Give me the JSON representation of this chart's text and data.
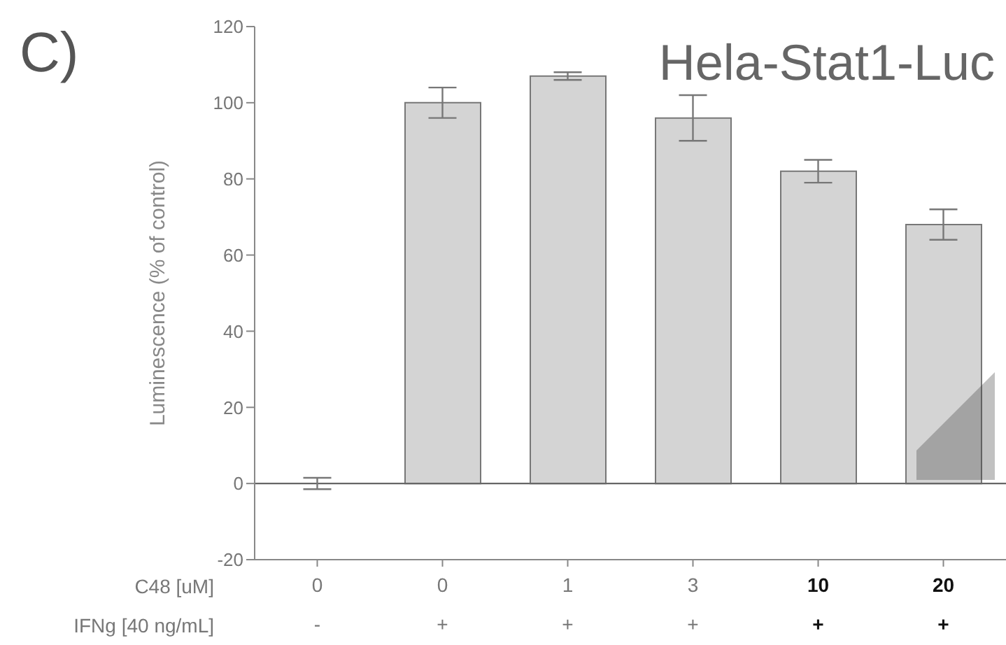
{
  "chart_data": {
    "type": "bar",
    "title": "Hela-Stat1-Luc",
    "categories": [
      "0",
      "0",
      "1",
      "3",
      "10",
      "20"
    ],
    "values": [
      0,
      100,
      107,
      96,
      82,
      68
    ],
    "errors": [
      1.5,
      4,
      1,
      6,
      3,
      4
    ],
    "color": "#d4d4d4",
    "xlabel": "C48 [uM]",
    "ylabel": "Luminescence (% of control)",
    "ylim": [
      -20,
      120
    ],
    "yticks": [
      -20,
      0,
      20,
      40,
      60,
      80,
      100,
      120
    ],
    "ref_lines": [
      {
        "axis": "y",
        "value": 0,
        "color": "#666666"
      }
    ],
    "annotations": [
      "C)",
      "IFNg [40 ng/mL]",
      "-",
      "+",
      "+",
      "+",
      "+",
      "+"
    ],
    "legend": false
  }
}
